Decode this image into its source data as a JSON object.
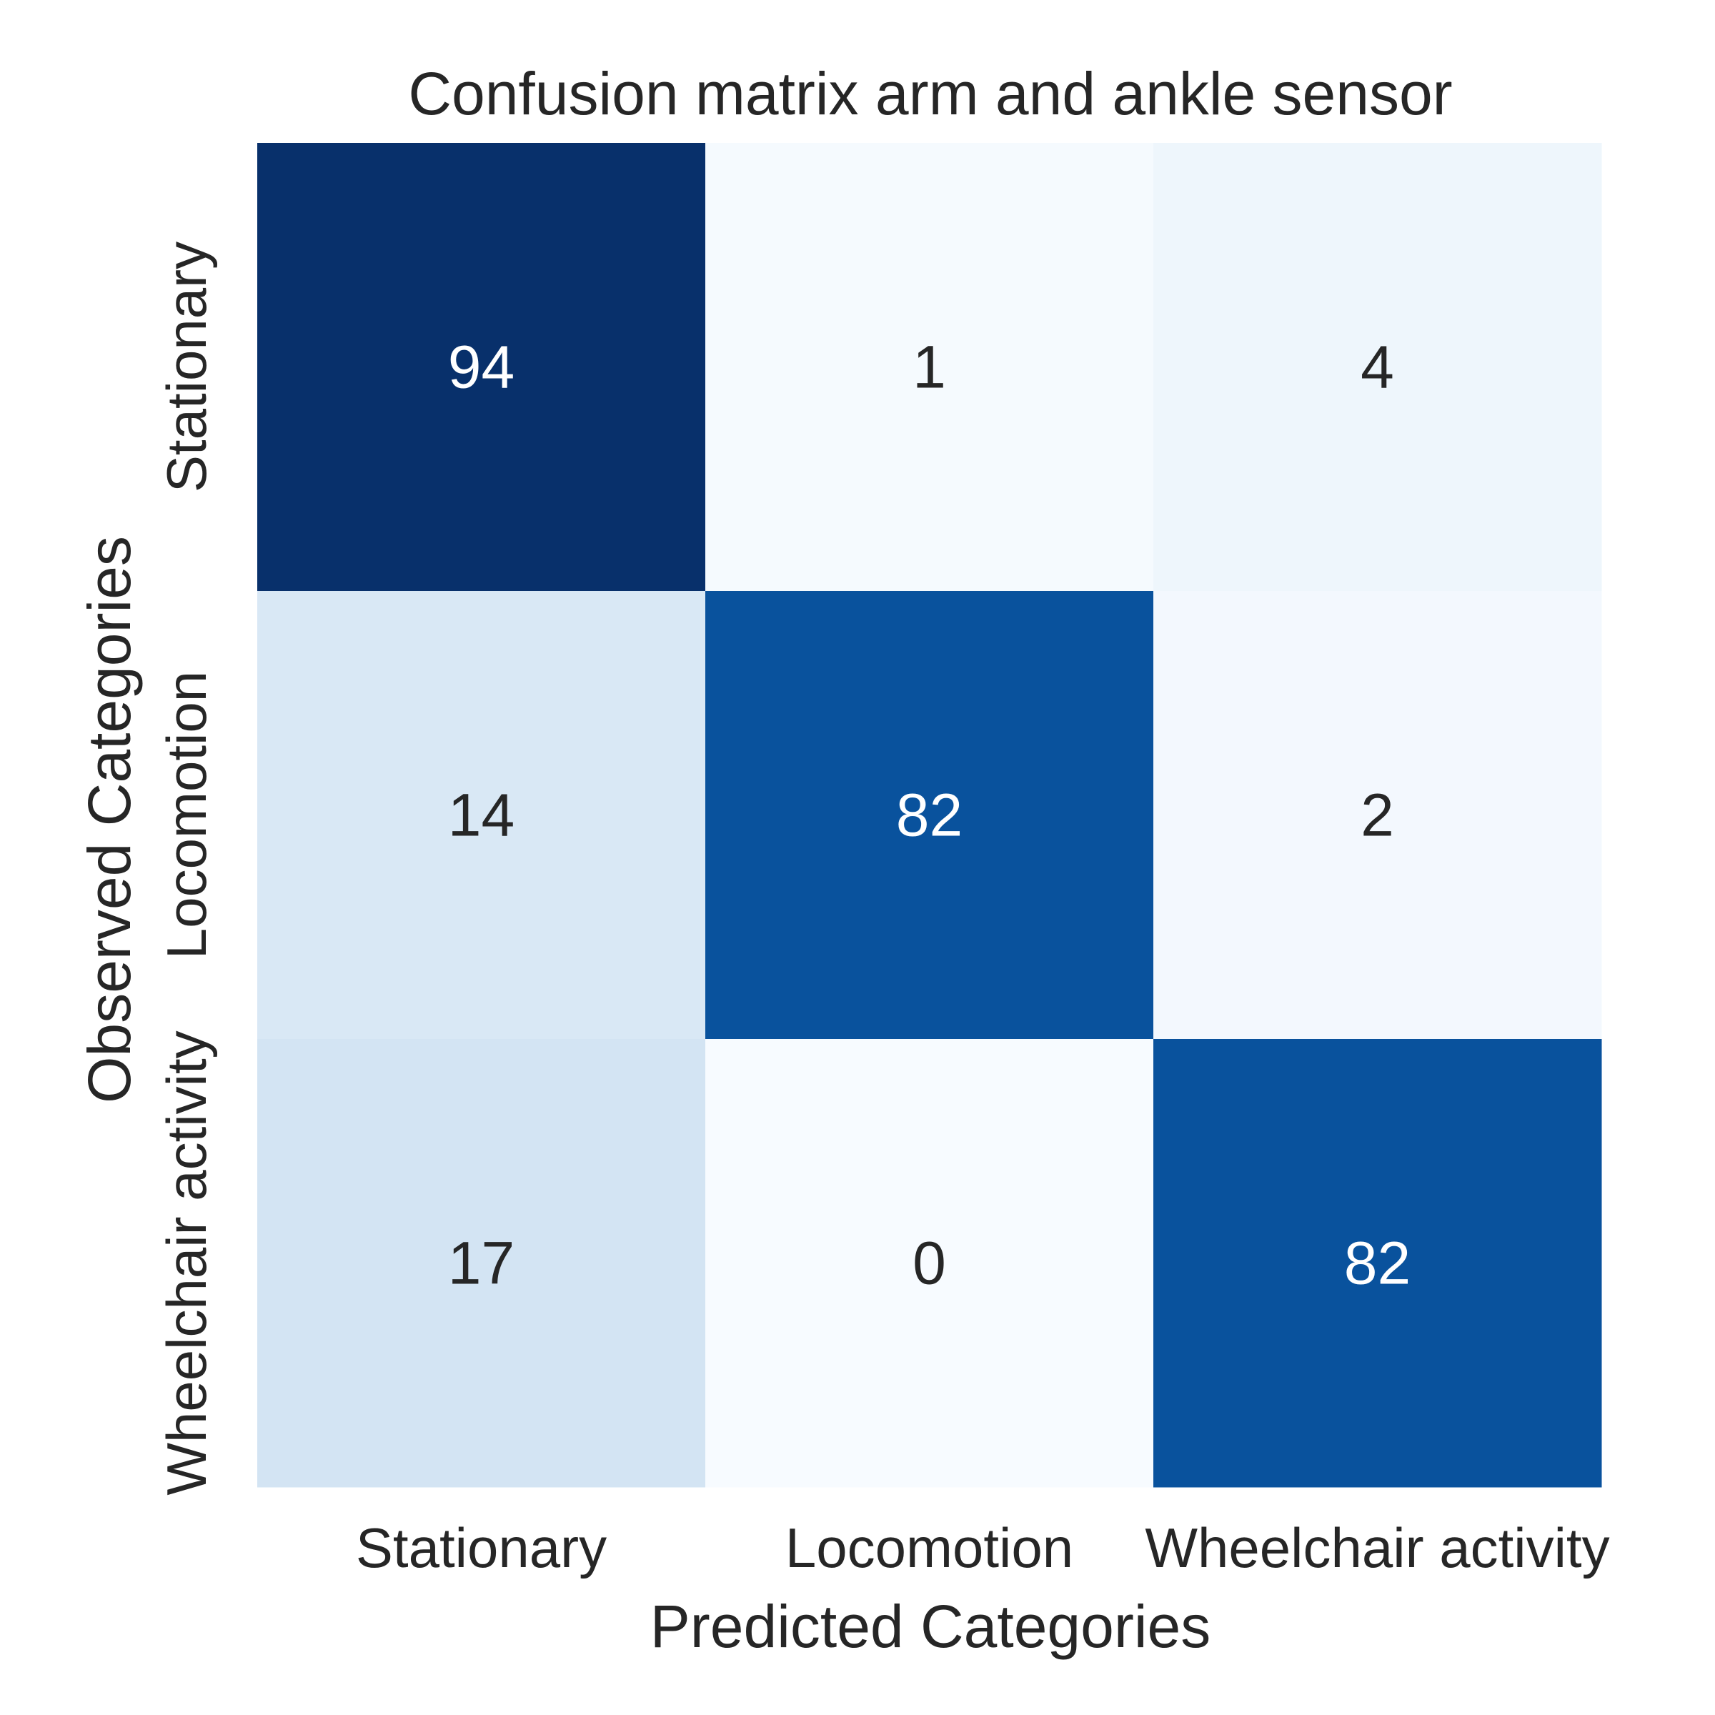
{
  "chart_data": {
    "type": "heatmap",
    "title": "Confusion matrix arm and ankle sensor",
    "xlabel": "Predicted Categories",
    "ylabel": "Observed Categories",
    "x_categories": [
      "Stationary",
      "Locomotion",
      "Wheelchair activity"
    ],
    "y_categories": [
      "Stationary",
      "Locomotion",
      "Wheelchair activity"
    ],
    "values": [
      [
        94,
        1,
        4
      ],
      [
        14,
        82,
        2
      ],
      [
        17,
        0,
        82
      ]
    ],
    "colormap": "Blues",
    "colorbar": false,
    "grid": false,
    "annotations": true
  },
  "colors": {
    "text_dark": "#262626",
    "text_light": "#ffffff",
    "scale_low": "#f7fbff",
    "scale_high": "#08306b"
  }
}
